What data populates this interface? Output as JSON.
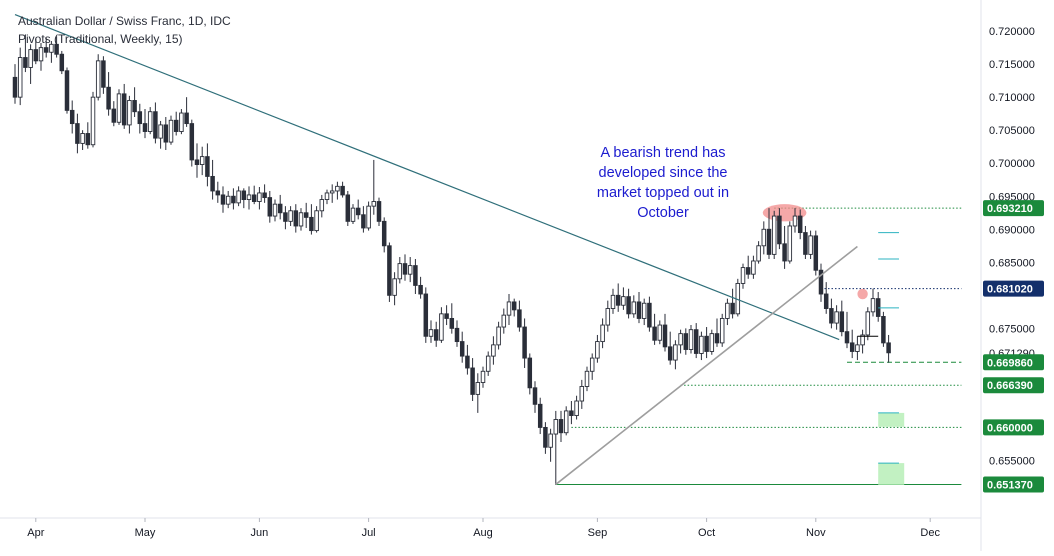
{
  "header": {
    "symbol_line": "Australian Dollar / Swiss Franc, 1D, IDC",
    "indicator_line": "Pivots (Traditional, Weekly, 15)"
  },
  "annotation": {
    "text": "A bearish trend has developed since the market topped out in October"
  },
  "colors": {
    "up_candle": "#ffffff",
    "down_candle": "#2a2e39",
    "trendline": "#2f6f7a",
    "support_line": "#9e9e9e",
    "level_green": "#1b8a3c",
    "level_navy": "#132f6b",
    "highlight_red": "#f28b8b",
    "zone_green": "#b7efb7",
    "annotation_text": "#1c1ccf"
  },
  "chart_data": {
    "type": "candlestick",
    "title": "Australian Dollar / Swiss Franc, 1D, IDC",
    "ylim": [
      0.6475,
      0.7235
    ],
    "y_ticks": [
      0.72,
      0.715,
      0.71,
      0.705,
      0.7,
      0.695,
      0.69,
      0.685,
      0.675,
      0.655
    ],
    "y_tick_labels": [
      "0.720000",
      "0.715000",
      "0.710000",
      "0.705000",
      "0.700000",
      "0.695000",
      "0.690000",
      "0.685000",
      "0.675000",
      "0.655000"
    ],
    "x_axis_months": [
      {
        "label": "Apr",
        "index": 4
      },
      {
        "label": "May",
        "index": 25
      },
      {
        "label": "Jun",
        "index": 47
      },
      {
        "label": "Jul",
        "index": 68
      },
      {
        "label": "Aug",
        "index": 90
      },
      {
        "label": "Sep",
        "index": 112
      },
      {
        "label": "Oct",
        "index": 133
      },
      {
        "label": "Nov",
        "index": 154
      },
      {
        "label": "Dec",
        "index": 176
      }
    ],
    "price_labels": [
      {
        "value": "0.693210",
        "price": 0.69321,
        "style": "green"
      },
      {
        "value": "0.681020",
        "price": 0.68102,
        "style": "navy"
      },
      {
        "value": "0.671290",
        "price": 0.67129,
        "style": "plain"
      },
      {
        "value": "0.669860",
        "price": 0.66986,
        "style": "green"
      },
      {
        "value": "0.666390",
        "price": 0.66639,
        "style": "green"
      },
      {
        "value": "0.660000",
        "price": 0.66,
        "style": "green"
      },
      {
        "value": "0.651370",
        "price": 0.65137,
        "style": "green"
      }
    ],
    "trendlines": [
      {
        "name": "resistance",
        "from": [
          0,
          0.7225
        ],
        "to": [
          158.5,
          0.6733
        ]
      },
      {
        "name": "support",
        "from": [
          104,
          0.65137
        ],
        "to": [
          162,
          0.6874
        ]
      }
    ],
    "levels": [
      {
        "price": 0.69321,
        "from_index": 146,
        "to_index": 182,
        "dash": "dotted"
      },
      {
        "price": 0.68102,
        "from_index": 155,
        "to_index": 182,
        "dash": "dotted"
      },
      {
        "price": 0.66986,
        "from_index": 160,
        "to_index": 182,
        "dash": "dashed"
      },
      {
        "price": 0.66639,
        "from_index": 128,
        "to_index": 182,
        "dash": "dotted"
      },
      {
        "price": 0.66,
        "from_index": 107,
        "to_index": 182,
        "dash": "dotted"
      },
      {
        "price": 0.65137,
        "from_index": 104,
        "to_index": 182,
        "dash": "solid"
      }
    ],
    "pivot_ticks": [
      {
        "price": 0.6895,
        "start": 166,
        "end": 170
      },
      {
        "price": 0.6855,
        "start": 166,
        "end": 170
      },
      {
        "price": 0.6781,
        "start": 166,
        "end": 170
      },
      {
        "price": 0.6738,
        "start": 162,
        "end": 166
      },
      {
        "price": 0.6622,
        "start": 166,
        "end": 170
      },
      {
        "price": 0.6546,
        "start": 166,
        "end": 170
      }
    ],
    "zones": [
      {
        "price_top": 0.6622,
        "price_bottom": 0.6601,
        "start": 166,
        "end": 171
      },
      {
        "price_top": 0.6546,
        "price_bottom": 0.6513,
        "start": 166,
        "end": 171
      }
    ],
    "highlights": [
      {
        "index": 148,
        "price": 0.6925,
        "rx_bars": 4.2,
        "ry_price": 0.0013
      },
      {
        "index": 163,
        "price": 0.6802,
        "rx_bars": 1.0,
        "ry_price": 0.0008
      }
    ],
    "candles": [
      [
        0.713,
        0.715,
        0.709,
        0.71
      ],
      [
        0.71,
        0.7175,
        0.7088,
        0.716
      ],
      [
        0.716,
        0.7195,
        0.7138,
        0.7145
      ],
      [
        0.7145,
        0.718,
        0.712,
        0.7172
      ],
      [
        0.7172,
        0.7188,
        0.715,
        0.7155
      ],
      [
        0.7155,
        0.7182,
        0.714,
        0.7175
      ],
      [
        0.7175,
        0.719,
        0.716,
        0.7168
      ],
      [
        0.7168,
        0.7185,
        0.7152,
        0.718
      ],
      [
        0.718,
        0.7192,
        0.716,
        0.7165
      ],
      [
        0.7165,
        0.717,
        0.7135,
        0.714
      ],
      [
        0.714,
        0.7145,
        0.7075,
        0.708
      ],
      [
        0.708,
        0.7095,
        0.7045,
        0.706
      ],
      [
        0.706,
        0.7075,
        0.7015,
        0.703
      ],
      [
        0.703,
        0.705,
        0.702,
        0.7045
      ],
      [
        0.7045,
        0.7062,
        0.7022,
        0.7028
      ],
      [
        0.7028,
        0.7108,
        0.7024,
        0.71
      ],
      [
        0.71,
        0.7165,
        0.7095,
        0.7155
      ],
      [
        0.7155,
        0.7162,
        0.7105,
        0.7115
      ],
      [
        0.7115,
        0.7138,
        0.7072,
        0.7082
      ],
      [
        0.7082,
        0.7094,
        0.7056,
        0.7062
      ],
      [
        0.7062,
        0.7112,
        0.7058,
        0.7105
      ],
      [
        0.7105,
        0.712,
        0.7052,
        0.7058
      ],
      [
        0.7058,
        0.7102,
        0.7045,
        0.7095
      ],
      [
        0.7095,
        0.7115,
        0.707,
        0.7078
      ],
      [
        0.7078,
        0.709,
        0.7045,
        0.706
      ],
      [
        0.706,
        0.7082,
        0.7038,
        0.7048
      ],
      [
        0.7048,
        0.7085,
        0.7044,
        0.7078
      ],
      [
        0.7078,
        0.7092,
        0.703,
        0.7038
      ],
      [
        0.7038,
        0.7064,
        0.7022,
        0.7058
      ],
      [
        0.7058,
        0.707,
        0.702,
        0.7032
      ],
      [
        0.7032,
        0.7072,
        0.7028,
        0.7065
      ],
      [
        0.7065,
        0.7078,
        0.7042,
        0.7048
      ],
      [
        0.7048,
        0.7082,
        0.7044,
        0.7076
      ],
      [
        0.7076,
        0.71,
        0.7055,
        0.706
      ],
      [
        0.706,
        0.7066,
        0.6995,
        0.7005
      ],
      [
        0.7005,
        0.703,
        0.6978,
        0.6998
      ],
      [
        0.6998,
        0.7025,
        0.6982,
        0.701
      ],
      [
        0.701,
        0.703,
        0.6965,
        0.698
      ],
      [
        0.698,
        0.7005,
        0.6945,
        0.6958
      ],
      [
        0.6958,
        0.6972,
        0.694,
        0.6952
      ],
      [
        0.6952,
        0.6965,
        0.6925,
        0.6938
      ],
      [
        0.6938,
        0.6958,
        0.6932,
        0.695
      ],
      [
        0.695,
        0.6962,
        0.693,
        0.694
      ],
      [
        0.694,
        0.6965,
        0.6935,
        0.6958
      ],
      [
        0.6958,
        0.6962,
        0.6932,
        0.6945
      ],
      [
        0.6945,
        0.6965,
        0.693,
        0.6952
      ],
      [
        0.6952,
        0.6966,
        0.6938,
        0.6942
      ],
      [
        0.6942,
        0.6964,
        0.693,
        0.6955
      ],
      [
        0.6955,
        0.6968,
        0.694,
        0.6948
      ],
      [
        0.6948,
        0.6958,
        0.691,
        0.692
      ],
      [
        0.692,
        0.6945,
        0.6912,
        0.6938
      ],
      [
        0.6938,
        0.6952,
        0.6915,
        0.6925
      ],
      [
        0.6925,
        0.6935,
        0.69,
        0.6912
      ],
      [
        0.6912,
        0.6935,
        0.6905,
        0.6928
      ],
      [
        0.6928,
        0.6938,
        0.6895,
        0.6905
      ],
      [
        0.6905,
        0.6932,
        0.6898,
        0.6925
      ],
      [
        0.6925,
        0.694,
        0.6902,
        0.6918
      ],
      [
        0.6918,
        0.6938,
        0.6892,
        0.6898
      ],
      [
        0.6898,
        0.6935,
        0.6895,
        0.6928
      ],
      [
        0.6928,
        0.6952,
        0.6918,
        0.6945
      ],
      [
        0.6945,
        0.696,
        0.6938,
        0.6955
      ],
      [
        0.6955,
        0.6968,
        0.694,
        0.6958
      ],
      [
        0.6958,
        0.6972,
        0.6945,
        0.6965
      ],
      [
        0.6965,
        0.6972,
        0.6948,
        0.6952
      ],
      [
        0.6952,
        0.6958,
        0.6905,
        0.6912
      ],
      [
        0.6912,
        0.6938,
        0.6908,
        0.6932
      ],
      [
        0.6932,
        0.6945,
        0.6915,
        0.6922
      ],
      [
        0.6922,
        0.6935,
        0.6895,
        0.6902
      ],
      [
        0.6902,
        0.6942,
        0.6898,
        0.6935
      ],
      [
        0.6935,
        0.7005,
        0.6922,
        0.6942
      ],
      [
        0.6942,
        0.6948,
        0.6905,
        0.6912
      ],
      [
        0.6912,
        0.6918,
        0.6865,
        0.6875
      ],
      [
        0.6875,
        0.688,
        0.679,
        0.68
      ],
      [
        0.68,
        0.6835,
        0.6785,
        0.6825
      ],
      [
        0.6825,
        0.6858,
        0.6818,
        0.6848
      ],
      [
        0.6848,
        0.6862,
        0.6822,
        0.6832
      ],
      [
        0.6832,
        0.6858,
        0.682,
        0.6845
      ],
      [
        0.6845,
        0.6855,
        0.6802,
        0.6815
      ],
      [
        0.6815,
        0.6828,
        0.6795,
        0.6802
      ],
      [
        0.6802,
        0.6812,
        0.6728,
        0.6738
      ],
      [
        0.6738,
        0.6762,
        0.6728,
        0.6748
      ],
      [
        0.6748,
        0.676,
        0.6722,
        0.6732
      ],
      [
        0.6732,
        0.6782,
        0.6728,
        0.6772
      ],
      [
        0.6772,
        0.6785,
        0.6755,
        0.6765
      ],
      [
        0.6765,
        0.6788,
        0.6742,
        0.675
      ],
      [
        0.675,
        0.6762,
        0.6722,
        0.673
      ],
      [
        0.673,
        0.6745,
        0.6698,
        0.6708
      ],
      [
        0.6708,
        0.6725,
        0.668,
        0.669
      ],
      [
        0.669,
        0.6705,
        0.664,
        0.665
      ],
      [
        0.665,
        0.6682,
        0.6622,
        0.6668
      ],
      [
        0.6668,
        0.6692,
        0.666,
        0.6685
      ],
      [
        0.6685,
        0.6715,
        0.6678,
        0.6708
      ],
      [
        0.6708,
        0.6738,
        0.6695,
        0.6725
      ],
      [
        0.6725,
        0.676,
        0.6718,
        0.6752
      ],
      [
        0.6752,
        0.678,
        0.6742,
        0.677
      ],
      [
        0.677,
        0.6802,
        0.6755,
        0.679
      ],
      [
        0.679,
        0.6795,
        0.6768,
        0.6778
      ],
      [
        0.6778,
        0.6792,
        0.6745,
        0.6752
      ],
      [
        0.6752,
        0.6765,
        0.669,
        0.6705
      ],
      [
        0.6705,
        0.6712,
        0.665,
        0.666
      ],
      [
        0.666,
        0.667,
        0.6622,
        0.6635
      ],
      [
        0.6635,
        0.6645,
        0.659,
        0.66
      ],
      [
        0.66,
        0.6608,
        0.656,
        0.657
      ],
      [
        0.657,
        0.6598,
        0.6548,
        0.659
      ],
      [
        0.659,
        0.6625,
        0.6513,
        0.6612
      ],
      [
        0.6612,
        0.6625,
        0.6578,
        0.6592
      ],
      [
        0.6592,
        0.6632,
        0.6588,
        0.6625
      ],
      [
        0.6625,
        0.664,
        0.6605,
        0.6618
      ],
      [
        0.6618,
        0.6648,
        0.6612,
        0.664
      ],
      [
        0.664,
        0.6672,
        0.6628,
        0.6662
      ],
      [
        0.6662,
        0.6692,
        0.6655,
        0.6685
      ],
      [
        0.6685,
        0.6712,
        0.6672,
        0.6705
      ],
      [
        0.6705,
        0.674,
        0.6698,
        0.673
      ],
      [
        0.673,
        0.6765,
        0.672,
        0.6755
      ],
      [
        0.6755,
        0.6792,
        0.6745,
        0.678
      ],
      [
        0.678,
        0.681,
        0.6772,
        0.68
      ],
      [
        0.68,
        0.6818,
        0.6775,
        0.6785
      ],
      [
        0.6785,
        0.6812,
        0.6778,
        0.6798
      ],
      [
        0.6798,
        0.681,
        0.6765,
        0.6772
      ],
      [
        0.6772,
        0.68,
        0.6766,
        0.679
      ],
      [
        0.679,
        0.6805,
        0.6758,
        0.6765
      ],
      [
        0.6765,
        0.6795,
        0.6755,
        0.6788
      ],
      [
        0.6788,
        0.6798,
        0.6745,
        0.6752
      ],
      [
        0.6752,
        0.6772,
        0.6725,
        0.6732
      ],
      [
        0.6732,
        0.6762,
        0.6726,
        0.6755
      ],
      [
        0.6755,
        0.6772,
        0.6715,
        0.6722
      ],
      [
        0.6722,
        0.6745,
        0.6695,
        0.6702
      ],
      [
        0.6702,
        0.6732,
        0.6688,
        0.6725
      ],
      [
        0.6725,
        0.6748,
        0.6712,
        0.6742
      ],
      [
        0.6742,
        0.675,
        0.671,
        0.6718
      ],
      [
        0.6718,
        0.6755,
        0.6712,
        0.6748
      ],
      [
        0.6748,
        0.6758,
        0.6705,
        0.6712
      ],
      [
        0.6712,
        0.6745,
        0.6702,
        0.6738
      ],
      [
        0.6738,
        0.6752,
        0.6705,
        0.6715
      ],
      [
        0.6715,
        0.6748,
        0.671,
        0.6742
      ],
      [
        0.6742,
        0.6765,
        0.6722,
        0.6728
      ],
      [
        0.6728,
        0.6772,
        0.6722,
        0.6765
      ],
      [
        0.6765,
        0.6795,
        0.6755,
        0.6788
      ],
      [
        0.6788,
        0.681,
        0.6765,
        0.6772
      ],
      [
        0.6772,
        0.6825,
        0.6768,
        0.6818
      ],
      [
        0.6818,
        0.6848,
        0.681,
        0.6842
      ],
      [
        0.6842,
        0.686,
        0.6825,
        0.6832
      ],
      [
        0.6832,
        0.686,
        0.6825,
        0.6852
      ],
      [
        0.6852,
        0.6882,
        0.6848,
        0.6875
      ],
      [
        0.6875,
        0.6912,
        0.6862,
        0.69
      ],
      [
        0.69,
        0.6932,
        0.6855,
        0.6862
      ],
      [
        0.6862,
        0.6928,
        0.6855,
        0.692
      ],
      [
        0.692,
        0.6932,
        0.687,
        0.6878
      ],
      [
        0.6878,
        0.6905,
        0.684,
        0.6852
      ],
      [
        0.6852,
        0.6912,
        0.6848,
        0.6905
      ],
      [
        0.6905,
        0.6932,
        0.6895,
        0.692
      ],
      [
        0.692,
        0.693,
        0.6885,
        0.6895
      ],
      [
        0.6895,
        0.6905,
        0.6855,
        0.6862
      ],
      [
        0.6862,
        0.6898,
        0.6855,
        0.689
      ],
      [
        0.689,
        0.6898,
        0.683,
        0.6838
      ],
      [
        0.6838,
        0.6848,
        0.679,
        0.6802
      ],
      [
        0.6802,
        0.682,
        0.6772,
        0.678
      ],
      [
        0.678,
        0.6795,
        0.675,
        0.6758
      ],
      [
        0.6758,
        0.6785,
        0.6748,
        0.6775
      ],
      [
        0.6775,
        0.6792,
        0.6738,
        0.6745
      ],
      [
        0.6745,
        0.6775,
        0.672,
        0.6728
      ],
      [
        0.6728,
        0.6748,
        0.6705,
        0.6715
      ],
      [
        0.6715,
        0.6738,
        0.6702,
        0.6725
      ],
      [
        0.6725,
        0.6748,
        0.6712,
        0.674
      ],
      [
        0.674,
        0.6782,
        0.6732,
        0.6775
      ],
      [
        0.6775,
        0.681,
        0.6768,
        0.6795
      ],
      [
        0.6795,
        0.6805,
        0.676,
        0.6768
      ],
      [
        0.6768,
        0.6775,
        0.6722,
        0.6728
      ],
      [
        0.6728,
        0.674,
        0.6698,
        0.6713
      ]
    ]
  }
}
